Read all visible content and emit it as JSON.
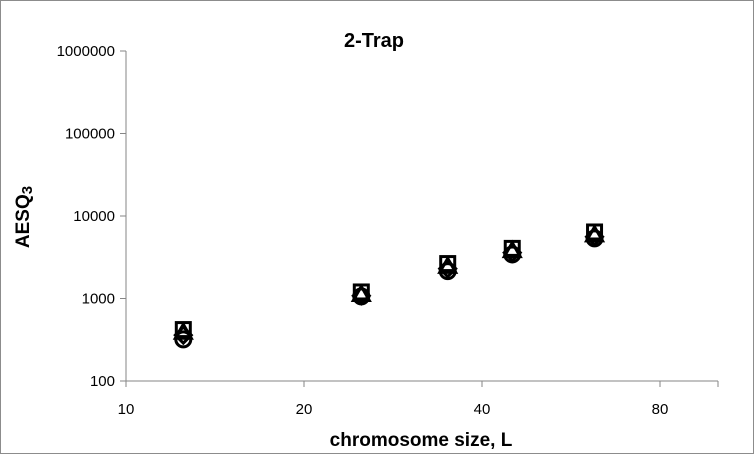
{
  "chart_data": {
    "type": "scatter",
    "title": "2-Trap",
    "xlabel": "chromosome size, L",
    "ylabel_main": "AESQ",
    "ylabel_sub": "3",
    "x_scale": "log2",
    "y_scale": "log10",
    "xlim": [
      10,
      113
    ],
    "ylim": [
      100,
      1000000
    ],
    "x_ticks": [
      "10",
      "20",
      "40",
      "80"
    ],
    "y_ticks": [
      "100",
      "1000",
      "10000",
      "100000",
      "1000000"
    ],
    "grid": false,
    "legend": "none",
    "colors": {
      "marker": "#000000",
      "axis": "#868686",
      "frame": "#8c8c8c"
    },
    "series": [
      {
        "marker": "square",
        "x": [
          12.5,
          25,
          35,
          45,
          62
        ],
        "y": [
          420,
          1200,
          2650,
          4050,
          6400
        ]
      },
      {
        "marker": "triangle",
        "x": [
          12.5,
          25,
          35,
          45,
          62
        ],
        "y": [
          390,
          1120,
          2450,
          3800,
          5900
        ]
      },
      {
        "marker": "diamond",
        "x": [
          12.5,
          25,
          35,
          45,
          62
        ],
        "y": [
          360,
          1080,
          2300,
          3600,
          5600
        ]
      },
      {
        "marker": "circle",
        "x": [
          12.5,
          25,
          35,
          45,
          62
        ],
        "y": [
          320,
          1060,
          2150,
          3420,
          5350
        ]
      }
    ]
  }
}
